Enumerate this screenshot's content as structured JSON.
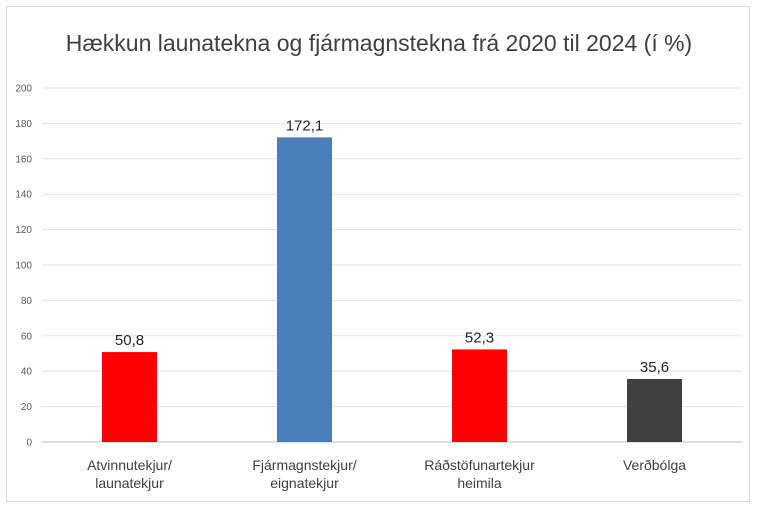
{
  "chart_data": {
    "type": "bar",
    "title": "Hækkun launatekna og fjármagnstekna frá 2020 til 2024 (í %)",
    "xlabel": "",
    "ylabel": "",
    "ylim": [
      0,
      200
    ],
    "yticks": [
      "0",
      "20",
      "40",
      "60",
      "80",
      "100",
      "120",
      "140",
      "160",
      "180",
      "200"
    ],
    "grid": true,
    "legend": "none",
    "categories": [
      [
        "Atvinnutekjur/",
        "launatekjur"
      ],
      [
        "Fjármagnstekjur/",
        "eignatekjur"
      ],
      [
        "Ráðstöfunartekjur",
        "heimila"
      ],
      [
        "Verðbólga"
      ]
    ],
    "values": [
      50.8,
      172.1,
      52.3,
      35.6
    ],
    "data_labels": [
      "50,8",
      "172,1",
      "52,3",
      "35,6"
    ],
    "colors": [
      "#ff0000",
      "#4a7ebb",
      "#ff0000",
      "#404040"
    ]
  }
}
